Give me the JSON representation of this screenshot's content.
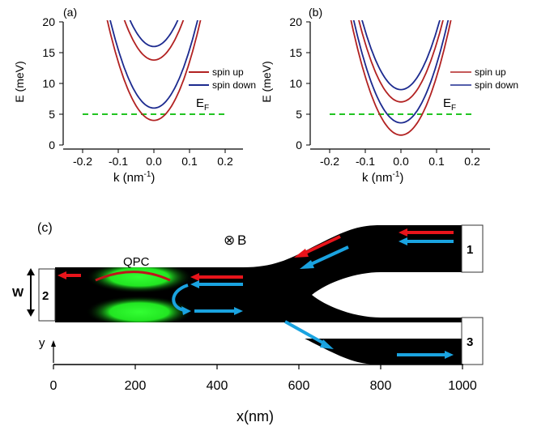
{
  "panel_a": {
    "label": "(a)",
    "ylabel": "E (meV)",
    "xlabel": "k (nm",
    "xlabel_sup": "-1",
    "xlabel_close": ")",
    "fermi_label": "E",
    "fermi_sub": "F",
    "legend": [
      "spin up",
      "spin down"
    ]
  },
  "panel_b": {
    "label": "(b)",
    "ylabel": "E (meV)",
    "xlabel": "k (nm",
    "xlabel_sup": "-1",
    "xlabel_close": ")",
    "fermi_label": "E",
    "fermi_sub": "F",
    "legend": [
      "spin up",
      "spin down"
    ]
  },
  "panel_c": {
    "label": "(c)",
    "qpc_label": "QPC",
    "field_symbol": "⊗",
    "field_label": "B",
    "width_label": "W",
    "y_label": "y",
    "xlabel": "x(nm)",
    "xticks": [
      "0",
      "200",
      "400",
      "600",
      "800",
      "1000"
    ],
    "lead_labels": [
      "1",
      "2",
      "3"
    ],
    "colors": {
      "spin_up_arrow": "#e8141b",
      "spin_down_arrow": "#1aa3e0",
      "qpc": "#22e622",
      "device": "#000000"
    }
  },
  "chart_data": [
    {
      "type": "line",
      "panel": "(a)",
      "xlabel": "k (nm-1)",
      "ylabel": "E (meV)",
      "xlim": [
        -0.25,
        0.25
      ],
      "ylim": [
        0,
        20
      ],
      "xticks": [
        -0.2,
        -0.1,
        0.0,
        0.1,
        0.2
      ],
      "xtick_labels": [
        "-0.2",
        "-0.1",
        "0.0",
        "0.1",
        "0.2"
      ],
      "yticks": [
        0,
        5,
        10,
        15,
        20
      ],
      "yticks_labels": [
        "0",
        "5",
        "10",
        "15",
        "20"
      ],
      "curvature_meV_nm2": 950,
      "series": [
        {
          "name": "spin up",
          "color": "#b22222",
          "minima": [
            4.0,
            13.8
          ]
        },
        {
          "name": "spin down",
          "color": "#1c2a8f",
          "minima": [
            6.0,
            16.0
          ]
        }
      ],
      "fermi_level": {
        "y": 5,
        "x_range": [
          -0.2,
          0.2
        ],
        "color": "#22c422",
        "style": "dashed"
      },
      "legend_position": "right"
    },
    {
      "type": "line",
      "panel": "(b)",
      "xlabel": "k (nm-1)",
      "ylabel": "E (meV)",
      "xlim": [
        -0.25,
        0.25
      ],
      "ylim": [
        0,
        20
      ],
      "xticks": [
        -0.2,
        -0.1,
        0.0,
        0.1,
        0.2
      ],
      "xtick_labels": [
        "-0.2",
        "-0.1",
        "0.0",
        "0.1",
        "0.2"
      ],
      "yticks": [
        0,
        5,
        10,
        15,
        20
      ],
      "yticks_labels": [
        "0",
        "5",
        "10",
        "15",
        "20"
      ],
      "curvature_meV_nm2": 950,
      "series": [
        {
          "name": "spin up",
          "color": "#b22222",
          "minima": [
            1.6,
            7.0
          ]
        },
        {
          "name": "spin down",
          "color": "#1c2a8f",
          "minima": [
            3.6,
            9.0
          ]
        }
      ],
      "fermi_level": {
        "y": 5,
        "x_range": [
          -0.2,
          0.2
        ],
        "color": "#22c422",
        "style": "dashed"
      },
      "legend_position": "right"
    }
  ]
}
